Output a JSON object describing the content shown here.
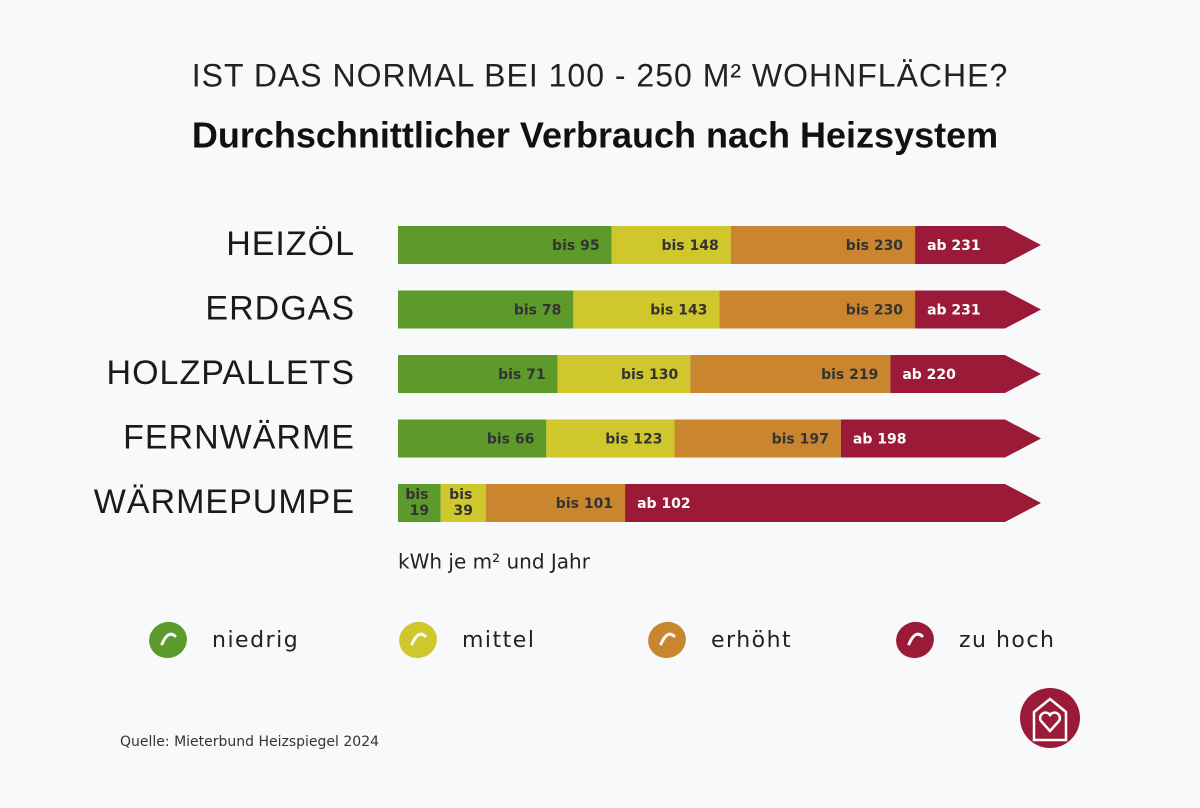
{
  "chart_data": {
    "type": "bar",
    "subtitle": "IST DAS NORMAL BEI 100 - 250 M² WOHNFLÄCHE?",
    "title": "Durchschnittlicher Verbrauch nach Heizsystem",
    "categories": [
      "HEIZÖL",
      "ERDGAS",
      "HOLZPALLETS",
      "FERNWÄRME",
      "WÄRMEPUMPE"
    ],
    "series": [
      {
        "name": "niedrig",
        "color": "#5b9a2b",
        "values": [
          95,
          78,
          71,
          66,
          19
        ],
        "value_labels": [
          "bis 95",
          "bis 78",
          "bis 71",
          "bis 66",
          "bis 19"
        ]
      },
      {
        "name": "mittel",
        "color": "#cfc72b",
        "values": [
          148,
          143,
          130,
          123,
          39
        ],
        "value_labels": [
          "bis 148",
          "bis 143",
          "bis 130",
          "bis 123",
          "bis 39"
        ]
      },
      {
        "name": "erhöht",
        "color": "#c9862f",
        "values": [
          230,
          230,
          219,
          197,
          101
        ],
        "value_labels": [
          "bis 230",
          "bis 230",
          "bis 219",
          "bis 197",
          "bis 101"
        ]
      },
      {
        "name": "zu hoch",
        "color": "#9b1a37",
        "values": [
          231,
          231,
          220,
          198,
          102
        ],
        "value_labels": [
          "ab 231",
          "ab 231",
          "ab 220",
          "ab 198",
          "ab 102"
        ]
      }
    ],
    "xlim": [
      0,
      270
    ],
    "x_label": "kWh je m² und Jahr",
    "source": "Quelle: Mieterbund Heizspiegel 2024"
  }
}
